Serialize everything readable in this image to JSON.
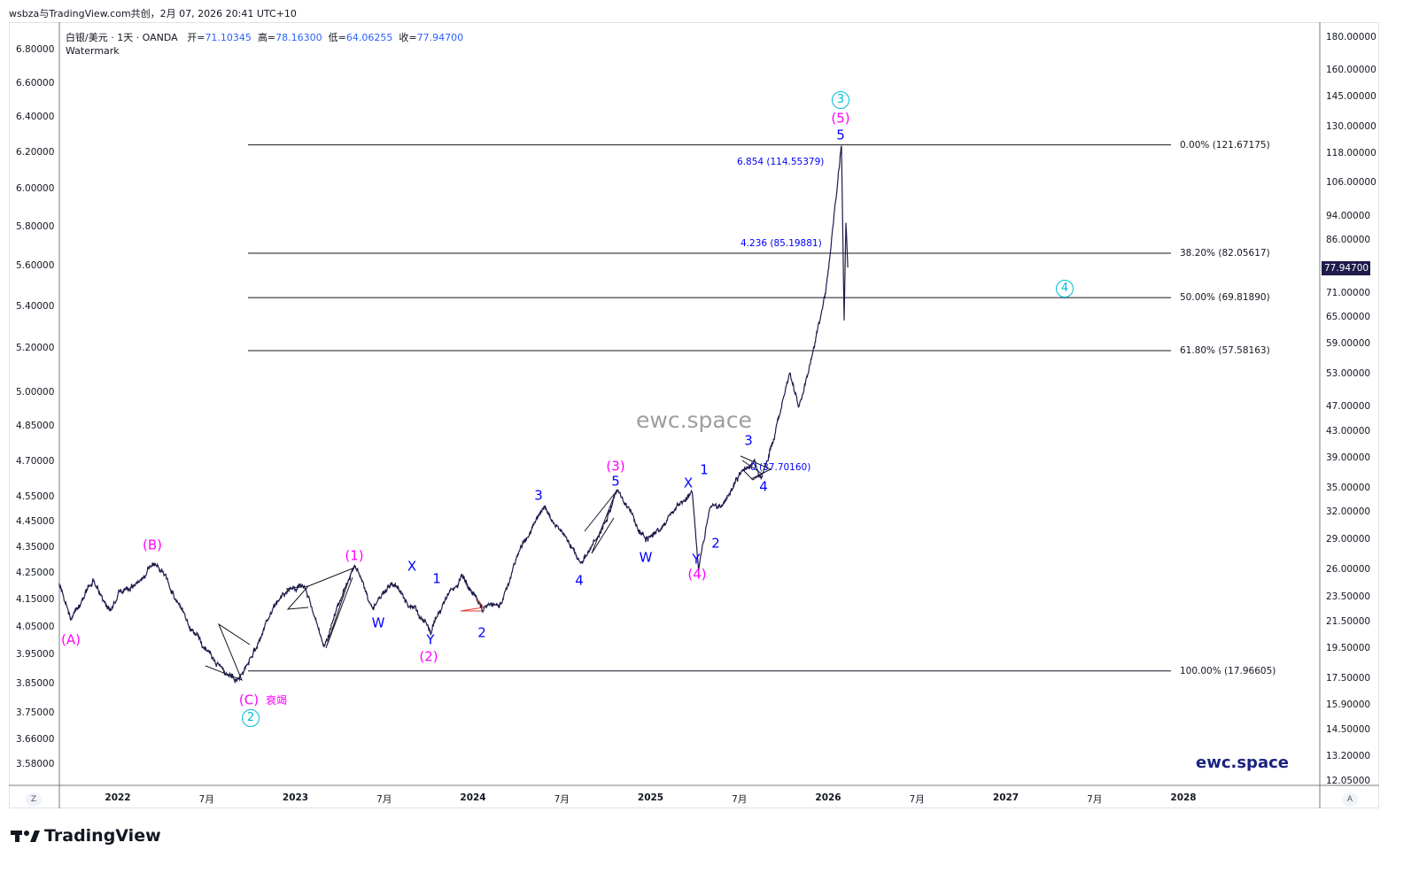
{
  "credit": "wsbza与TradingView.com共创，2月 07, 2026 20:41 UTC+10",
  "legend": {
    "symbol": "白银/美元 · 1天 · OANDA",
    "open_label": "开=",
    "open": "71.10345",
    "high_label": "高=",
    "high": "78.16300",
    "low_label": "低=",
    "low": "64.06255",
    "close_label": "收=",
    "close": "77.94700",
    "watermark": "Watermark"
  },
  "chart_data": {
    "type": "line",
    "title": "白银/美元 · 1天 · OANDA",
    "yscale": "log",
    "ylim": [
      12.05,
      180
    ],
    "series": [
      {
        "name": "XAGUSD",
        "color": "#1e1b4b",
        "x": [
          2021.67,
          2021.735,
          2021.86,
          2021.96,
          2022.185,
          2022.285,
          2022.385,
          2022.56,
          2022.685,
          2022.76,
          2022.835,
          2022.935,
          2023.06,
          2023.16,
          2023.335,
          2023.435,
          2023.535,
          2023.685,
          2023.76,
          2023.835,
          2023.935,
          2024.06,
          2024.16,
          2024.285,
          2024.395,
          2024.535,
          2024.61,
          2024.81,
          2024.935,
          2024.985,
          2025.235,
          2025.27,
          2025.335,
          2025.41,
          2025.485,
          2025.585,
          2025.625,
          2025.685,
          2025.785,
          2025.835,
          2025.91,
          2025.985,
          2026.01,
          2026.035,
          2026.075,
          2026.09,
          2026.1,
          2026.11
        ],
        "y": [
          24.6,
          21.6,
          25.0,
          22.4,
          26.3,
          24.8,
          21.6,
          18.4,
          17.5,
          19.0,
          21.6,
          23.8,
          24.2,
          19.6,
          26.3,
          22.4,
          24.6,
          22.4,
          20.6,
          23.1,
          25.4,
          22.4,
          23.1,
          28.9,
          32.4,
          28.9,
          26.7,
          34.5,
          29.8,
          28.9,
          34.5,
          26.0,
          32.4,
          32.9,
          36.2,
          38.6,
          36.2,
          41.2,
          53.3,
          46.8,
          56.8,
          71.2,
          81.0,
          95.2,
          121.6,
          64.1,
          92.1,
          77.9
        ]
      }
    ],
    "fib_levels": [
      {
        "label": "0.00% (121.67175)",
        "value": 121.67175
      },
      {
        "label": "38.20% (82.05617)",
        "value": 82.05617
      },
      {
        "label": "50.00% (69.81890)",
        "value": 69.8189
      },
      {
        "label": "61.80% (57.58163)",
        "value": 57.58163
      },
      {
        "label": "100.00% (17.96605)",
        "value": 17.96605
      }
    ],
    "extensions": [
      "6.854 (114.55379)",
      "4.236 (85.19881)",
      "0 (37.70160)"
    ],
    "right_ticks": [
      "180.00000",
      "160.00000",
      "145.00000",
      "130.00000",
      "118.00000",
      "106.00000",
      "94.00000",
      "86.00000",
      "71.00000",
      "65.00000",
      "59.00000",
      "53.00000",
      "47.00000",
      "43.00000",
      "39.00000",
      "35.00000",
      "32.00000",
      "29.00000",
      "26.00000",
      "23.50000",
      "21.50000",
      "19.50000",
      "17.50000",
      "15.90000",
      "14.50000",
      "13.20000",
      "12.05000"
    ],
    "left_ticks": [
      "6.80000",
      "6.60000",
      "6.40000",
      "6.20000",
      "6.00000",
      "5.80000",
      "5.60000",
      "5.40000",
      "5.20000",
      "5.00000",
      "4.85000",
      "4.70000",
      "4.55000",
      "4.45000",
      "4.35000",
      "4.25000",
      "4.15000",
      "4.05000",
      "3.95000",
      "3.85000",
      "3.75000",
      "3.66000",
      "3.58000"
    ],
    "last_price": "77.94700",
    "time_ticks": [
      {
        "t": 2022,
        "label": "2022",
        "year": true
      },
      {
        "t": 2022.5,
        "label": "7月"
      },
      {
        "t": 2023,
        "label": "2023",
        "year": true
      },
      {
        "t": 2023.5,
        "label": "7月"
      },
      {
        "t": 2024,
        "label": "2024",
        "year": true
      },
      {
        "t": 2024.5,
        "label": "7月"
      },
      {
        "t": 2025,
        "label": "2025",
        "year": true
      },
      {
        "t": 2025.5,
        "label": "7月"
      },
      {
        "t": 2026,
        "label": "2026",
        "year": true
      },
      {
        "t": 2026.5,
        "label": "7月"
      },
      {
        "t": 2027,
        "label": "2027",
        "year": true
      },
      {
        "t": 2027.5,
        "label": "7月"
      },
      {
        "t": 2028,
        "label": "2028",
        "year": true
      }
    ],
    "waves": {
      "A": "(A)",
      "B": "(B)",
      "C": "(C)",
      "C_note": "衰竭",
      "c2": "2",
      "p1": "(1)",
      "x1": "X",
      "w1": "W",
      "y1": "Y",
      "p2": "(2)",
      "i1": "1",
      "i2": "2",
      "i3": "3",
      "i4": "4",
      "p3": "(3)",
      "i5": "5",
      "w2": "W",
      "x2": "X",
      "y2": "Y",
      "p4": "(4)",
      "j1": "1",
      "j2": "2",
      "j3": "3",
      "j4": "4",
      "j5": "5",
      "p5": "(5)",
      "c3": "3",
      "c4": "4"
    }
  },
  "watermark_center": "ewc.space",
  "watermark_corner": "ewc.space",
  "axis_buttons": {
    "left": "Z",
    "right": "A"
  },
  "brand": "TradingView"
}
